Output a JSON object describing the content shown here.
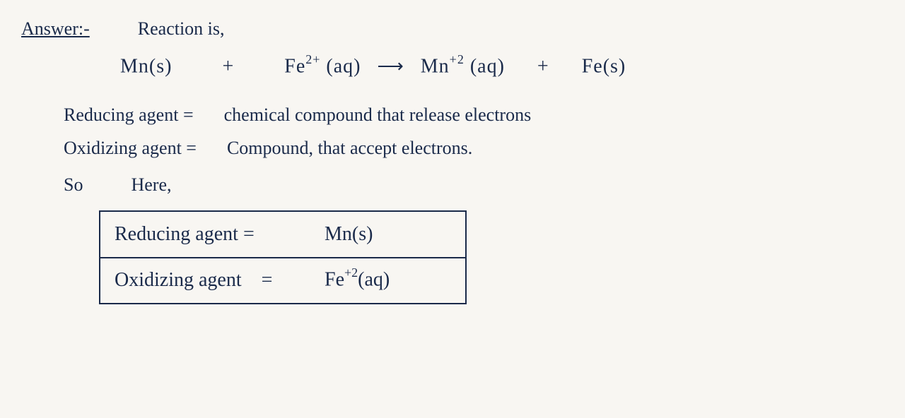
{
  "colors": {
    "ink": "#1a2a4a",
    "paper": "#f8f6f2"
  },
  "font": {
    "family": "cursive",
    "base_size_pt": 26
  },
  "header": {
    "label": "Answer:-",
    "trail": "Reaction is,"
  },
  "equation": {
    "r1_species": "Mn(s)",
    "plus1": "+",
    "r2_base": "Fe",
    "r2_charge": "2+",
    "r2_state": "(aq)",
    "arrow": "⟶",
    "p1_base": "Mn",
    "p1_charge": "+2",
    "p1_state": "(aq)",
    "plus2": "+",
    "p2_species": "Fe(s)"
  },
  "defs": {
    "reducing_lhs": "Reducing agent =",
    "reducing_rhs": "chemical compound that release electrons",
    "oxidizing_lhs": "Oxidizing agent =",
    "oxidizing_rhs": "Compound, that accept electrons."
  },
  "so_here": {
    "so": "So",
    "here": "Here,"
  },
  "boxed": {
    "row1_lhs": "Reducing agent =",
    "row1_rhs": "Mn(s)",
    "row2_lhs": "Oxidizing agent",
    "row2_eq": "=",
    "row2_base": "Fe",
    "row2_charge": "+2",
    "row2_state": "(aq)"
  }
}
